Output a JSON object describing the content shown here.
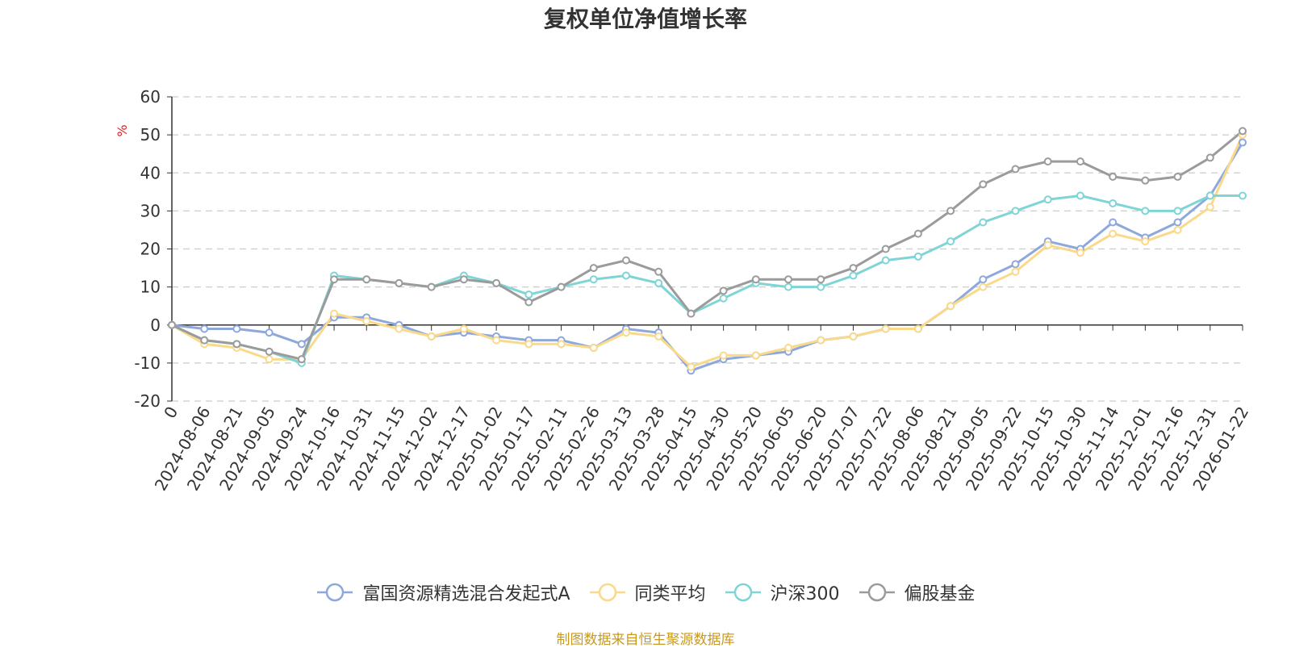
{
  "chart_data": {
    "type": "line",
    "title": "复权单位净值增长率",
    "ylabel": "%",
    "ylim": [
      -20,
      60
    ],
    "yticks": [
      -20,
      -10,
      0,
      10,
      20,
      30,
      40,
      50,
      60
    ],
    "grid": true,
    "legend_position": "bottom",
    "x_tick_labels": [
      "0",
      "2024-08-06",
      "2024-08-21",
      "2024-09-05",
      "2024-09-24",
      "2024-10-16",
      "2024-10-31",
      "2024-11-15",
      "2024-12-02",
      "2024-12-17",
      "2025-01-02",
      "2025-01-17",
      "2025-02-11",
      "2025-02-26",
      "2025-03-13",
      "2025-03-28",
      "2025-04-15",
      "2025-04-30",
      "2025-05-20",
      "2025-06-05",
      "2025-06-20",
      "2025-07-07",
      "2025-07-22",
      "2025-08-06",
      "2025-08-21",
      "2025-09-05",
      "2025-09-22",
      "2025-10-15",
      "2025-10-30",
      "2025-11-14",
      "2025-12-01",
      "2025-12-16",
      "2025-12-31",
      "2026-01-22"
    ],
    "series": [
      {
        "name": "富国资源精选混合发起式A",
        "color": "#8ea8dc",
        "values": [
          0,
          -1,
          -1,
          -2,
          -5,
          2,
          2,
          0,
          -3,
          -2,
          -3,
          -4,
          -4,
          -6,
          -1,
          -2,
          -12,
          -9,
          -8,
          -7,
          -4,
          -3,
          -1,
          -1,
          5,
          12,
          16,
          22,
          20,
          27,
          23,
          27,
          34,
          48
        ]
      },
      {
        "name": "同类平均",
        "color": "#fad98a",
        "values": [
          0,
          -5,
          -6,
          -9,
          -9,
          3,
          1,
          -1,
          -3,
          -1,
          -4,
          -5,
          -5,
          -6,
          -2,
          -3,
          -11,
          -8,
          -8,
          -6,
          -4,
          -3,
          -1,
          -1,
          5,
          10,
          14,
          21,
          19,
          24,
          22,
          25,
          31,
          50
        ]
      },
      {
        "name": "沪深300",
        "color": "#7fd4d6",
        "values": [
          0,
          -4,
          -5,
          -7,
          -10,
          13,
          12,
          11,
          10,
          13,
          11,
          8,
          10,
          12,
          13,
          11,
          3,
          7,
          11,
          10,
          10,
          13,
          17,
          18,
          22,
          27,
          30,
          33,
          34,
          32,
          30,
          30,
          34,
          34
        ]
      },
      {
        "name": "偏股基金",
        "color": "#9b9b9b",
        "values": [
          0,
          -4,
          -5,
          -7,
          -9,
          12,
          12,
          11,
          10,
          12,
          11,
          6,
          10,
          15,
          17,
          14,
          3,
          9,
          12,
          12,
          12,
          15,
          20,
          24,
          30,
          37,
          41,
          43,
          43,
          39,
          38,
          39,
          44,
          51
        ]
      }
    ]
  },
  "legend": {
    "items": [
      {
        "label": "富国资源精选混合发起式A",
        "color": "#8ea8dc"
      },
      {
        "label": "同类平均",
        "color": "#fad98a"
      },
      {
        "label": "沪深300",
        "color": "#7fd4d6"
      },
      {
        "label": "偏股基金",
        "color": "#9b9b9b"
      }
    ]
  },
  "footer": {
    "source": "制图数据来自恒生聚源数据库"
  }
}
